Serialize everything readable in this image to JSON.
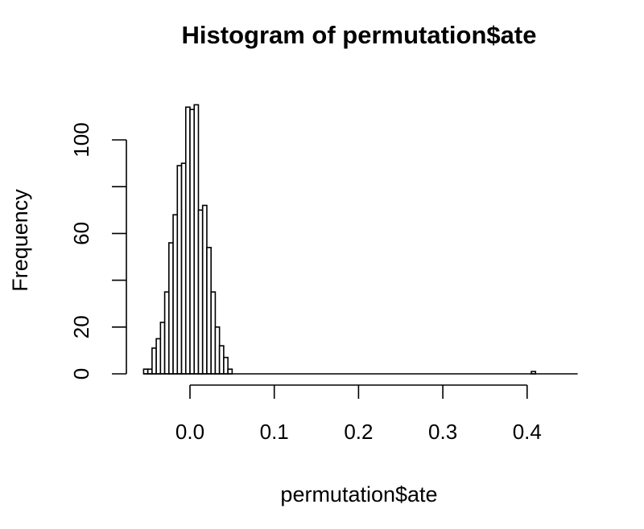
{
  "chart_data": {
    "type": "bar",
    "title": "Histogram of permutation$ate",
    "xlabel": "permutation$ate",
    "ylabel": "Frequency",
    "bin_width": 0.005,
    "bins_start": -0.055,
    "counts": [
      2,
      2,
      11,
      15,
      22,
      35,
      56,
      68,
      89,
      90,
      114,
      113,
      115,
      70,
      72,
      54,
      35,
      20,
      12,
      7,
      2,
      0,
      0,
      0,
      0,
      0,
      0,
      0,
      0,
      0,
      0,
      0,
      0,
      0,
      0,
      0,
      0,
      0,
      0,
      0,
      0,
      0,
      0,
      0,
      0,
      0,
      0,
      0,
      0,
      0,
      0,
      0,
      0,
      0,
      0,
      0,
      0,
      0,
      0,
      0,
      0,
      0,
      0,
      0,
      0,
      0,
      0,
      0,
      0,
      0,
      0,
      0,
      0,
      0,
      0,
      0,
      0,
      0,
      0,
      0,
      0,
      0,
      0,
      0,
      0,
      0,
      0,
      0,
      0,
      0,
      0,
      0,
      1
    ],
    "xlim": [
      -0.055,
      0.46
    ],
    "ylim": [
      0,
      115
    ],
    "x_ticks": [
      0.0,
      0.1,
      0.2,
      0.3,
      0.4
    ],
    "x_tick_labels": [
      "0.0",
      "0.1",
      "0.2",
      "0.3",
      "0.4"
    ],
    "y_ticks": [
      0,
      20,
      40,
      60,
      80,
      100
    ],
    "y_tick_labels": [
      "0",
      "20",
      "",
      "60",
      "",
      "100"
    ],
    "grid": false,
    "colors": {
      "bar_fill": "#ffffff",
      "bar_stroke": "#000000"
    }
  }
}
